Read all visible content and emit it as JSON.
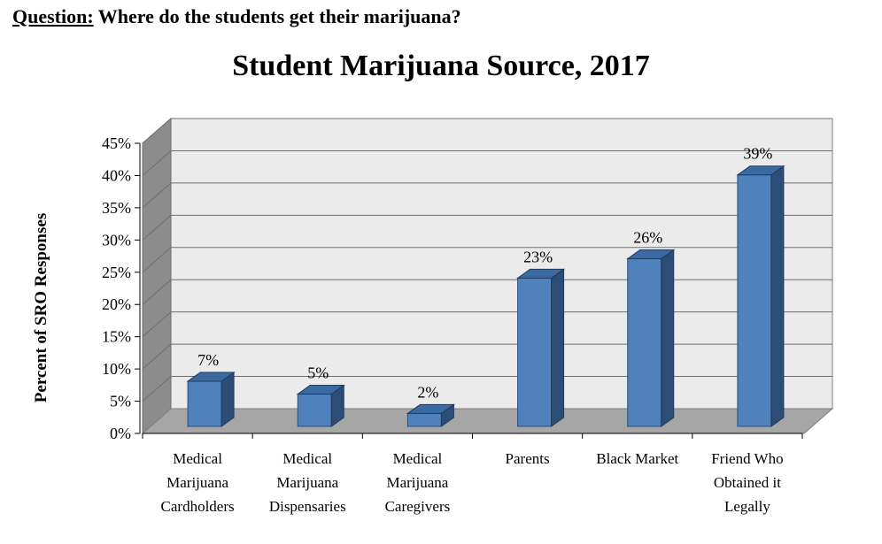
{
  "header": {
    "question_label": "Question:",
    "question_text": "Where do the students get their marijuana?"
  },
  "chart_data": {
    "type": "bar",
    "title": "Student Marijuana Source, 2017",
    "ylabel": "Percent of SRO Responses",
    "xlabel": "",
    "ylim": [
      0,
      45
    ],
    "yticks": [
      "0%",
      "5%",
      "10%",
      "15%",
      "20%",
      "25%",
      "30%",
      "35%",
      "40%",
      "45%"
    ],
    "categories": [
      [
        "Medical",
        "Marijuana",
        "Cardholders"
      ],
      [
        "Medical",
        "Marijuana",
        "Dispensaries"
      ],
      [
        "Medical",
        "Marijuana",
        "Caregivers"
      ],
      [
        "Parents"
      ],
      [
        "Black Market"
      ],
      [
        "Friend Who",
        "Obtained it",
        "Legally"
      ]
    ],
    "values": [
      7,
      5,
      2,
      23,
      26,
      39
    ],
    "data_labels": [
      "7%",
      "5%",
      "2%",
      "23%",
      "26%",
      "39%"
    ],
    "grid": true,
    "legend": "none",
    "colors": {
      "bar_front": "#4f81bd",
      "bar_side": "#2c4d75",
      "bar_top": "#3b6aa3",
      "wall": "#ebebeb",
      "floor": "#a6a6a6"
    }
  }
}
